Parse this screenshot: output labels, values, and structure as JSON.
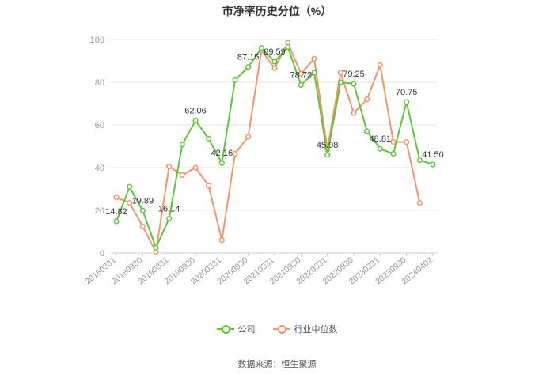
{
  "chart_data": {
    "type": "line",
    "title": "市净率历史分位（%）",
    "source": "数据来源：恒生聚源",
    "ylim": [
      0,
      100
    ],
    "yticks": [
      0,
      20,
      40,
      60,
      80,
      100
    ],
    "grid": true,
    "legend_position": "bottom",
    "x": [
      "20180331",
      "20180630",
      "20180930",
      "20181231",
      "20190331",
      "20190630",
      "20190930",
      "20191231",
      "20200331",
      "20200630",
      "20200930",
      "20201231",
      "20210331",
      "20210630",
      "20210930",
      "20211231",
      "20220331",
      "20220630",
      "20220930",
      "20221231",
      "20230331",
      "20230630",
      "20230930",
      "20231231",
      "20240402"
    ],
    "x_tick_labels": [
      "20180331",
      "20180930",
      "20190331",
      "20190930",
      "20200331",
      "20200930",
      "20210331",
      "20210930",
      "20220331",
      "20220930",
      "20230331",
      "20230930",
      "20240402"
    ],
    "series": [
      {
        "name": "公司",
        "color": "#5ec63b",
        "values": [
          14.82,
          31.0,
          19.89,
          2.5,
          16.14,
          50.8,
          62.06,
          53.5,
          42.16,
          81.0,
          87.15,
          96.0,
          89.59,
          96.5,
          78.72,
          84.5,
          45.98,
          80.0,
          79.25,
          57.0,
          48.81,
          46.5,
          70.75,
          43.5,
          41.5
        ],
        "labels": {
          "0": "14.82",
          "2": "19.89",
          "4": "16.14",
          "6": "62.06",
          "8": "42.16",
          "10": "87.15",
          "12": "89.59",
          "14": "78.72",
          "16": "45.98",
          "18": "79.25",
          "20": "48.81",
          "22": "70.75",
          "24": "41.50"
        }
      },
      {
        "name": "行业中位数",
        "color": "#f5936a",
        "values": [
          26.0,
          23.5,
          12.5,
          0.5,
          40.5,
          36.5,
          40.0,
          31.5,
          6.0,
          46.5,
          54.5,
          95.0,
          86.5,
          98.5,
          84.0,
          91.0,
          48.5,
          84.5,
          65.5,
          72.0,
          88.0,
          52.0,
          52.0,
          23.5,
          null
        ]
      }
    ]
  }
}
